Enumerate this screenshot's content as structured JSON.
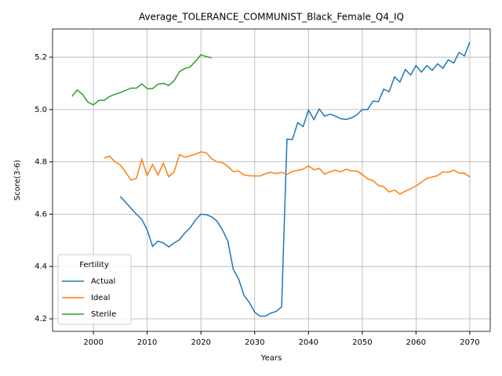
{
  "chart_data": {
    "type": "line",
    "title": "Average_TOLERANCE_COMMUNIST_Black_Female_Q4_IQ",
    "xlabel": "Years",
    "ylabel": "Score(3-6)",
    "x": [
      1996,
      1997,
      1998,
      1999,
      2000,
      2001,
      2002,
      2003,
      2004,
      2005,
      2006,
      2007,
      2008,
      2009,
      2010,
      2011,
      2012,
      2013,
      2014,
      2015,
      2016,
      2017,
      2018,
      2019,
      2020,
      2021,
      2022,
      2023,
      2024,
      2025,
      2026,
      2027,
      2028,
      2029,
      2030,
      2031,
      2032,
      2033,
      2034,
      2035,
      2036,
      2037,
      2038,
      2039,
      2040,
      2041,
      2042,
      2043,
      2044,
      2045,
      2046,
      2047,
      2048,
      2049,
      2050,
      2051,
      2052,
      2053,
      2054,
      2055,
      2056,
      2057,
      2058,
      2059,
      2060,
      2061,
      2062,
      2063,
      2064,
      2065,
      2066,
      2067,
      2068,
      2069,
      2070
    ],
    "series": [
      {
        "name": "Actual",
        "color": "#1f77b4",
        "values": [
          null,
          null,
          null,
          null,
          null,
          null,
          null,
          null,
          null,
          4.668,
          4.645,
          4.622,
          4.6,
          4.58,
          4.54,
          4.477,
          4.497,
          4.49,
          4.475,
          4.49,
          4.502,
          4.528,
          4.548,
          4.578,
          4.6,
          4.598,
          4.59,
          4.573,
          4.54,
          4.497,
          4.39,
          4.352,
          4.29,
          4.262,
          4.225,
          4.21,
          4.21,
          4.222,
          4.228,
          4.245,
          4.887,
          4.885,
          4.95,
          4.935,
          4.998,
          4.962,
          5.002,
          4.975,
          4.982,
          4.975,
          4.965,
          4.962,
          4.968,
          4.98,
          5.0,
          5.0,
          5.032,
          5.03,
          5.078,
          5.068,
          5.125,
          5.105,
          5.153,
          5.132,
          5.168,
          5.143,
          5.168,
          5.15,
          5.175,
          5.158,
          5.19,
          5.178,
          5.218,
          5.205,
          5.258
        ]
      },
      {
        "name": "Ideal",
        "color": "#ff7f0e",
        "values": [
          null,
          null,
          null,
          null,
          null,
          null,
          4.815,
          4.822,
          4.8,
          4.788,
          4.76,
          4.73,
          4.737,
          4.81,
          4.748,
          4.79,
          4.75,
          4.795,
          4.743,
          4.762,
          4.828,
          4.818,
          4.823,
          4.83,
          4.838,
          4.835,
          4.812,
          4.8,
          4.797,
          4.782,
          4.763,
          4.765,
          4.75,
          4.747,
          4.746,
          4.746,
          4.755,
          4.76,
          4.755,
          4.76,
          4.752,
          4.763,
          4.768,
          4.772,
          4.785,
          4.77,
          4.775,
          4.753,
          4.762,
          4.768,
          4.762,
          4.772,
          4.765,
          4.765,
          4.752,
          4.735,
          4.728,
          4.71,
          4.705,
          4.685,
          4.692,
          4.677,
          4.688,
          4.697,
          4.708,
          4.722,
          4.737,
          4.742,
          4.747,
          4.762,
          4.76,
          4.768,
          4.757,
          4.757,
          4.742
        ]
      },
      {
        "name": "Sterile",
        "color": "#2ca02c",
        "values": [
          5.05,
          5.075,
          5.057,
          5.028,
          5.018,
          5.035,
          5.035,
          5.05,
          5.058,
          5.065,
          5.073,
          5.082,
          5.082,
          5.098,
          5.08,
          5.08,
          5.097,
          5.1,
          5.092,
          5.11,
          5.145,
          5.157,
          5.163,
          5.185,
          5.21,
          5.202,
          5.198,
          null,
          null,
          null,
          null,
          null,
          null,
          null,
          null,
          null,
          null,
          null,
          null,
          null,
          null,
          null,
          null,
          null,
          null,
          null,
          null,
          null,
          null,
          null,
          null,
          null,
          null,
          null,
          null,
          null,
          null,
          null,
          null,
          null,
          null,
          null,
          null,
          null,
          null,
          null,
          null,
          null,
          null,
          null,
          null,
          null,
          null,
          null,
          null
        ]
      }
    ],
    "xlim": [
      1992.4,
      2073.8
    ],
    "xticks": [
      2000,
      2010,
      2020,
      2030,
      2040,
      2050,
      2060,
      2070
    ],
    "ylim": [
      4.152,
      5.308
    ],
    "yticks": [
      4.2,
      4.4,
      4.6,
      4.8,
      {
        "value": 5,
        "label": "5.0"
      },
      5.2
    ],
    "grid": true,
    "legend_title": "Fertility",
    "legend": "lower left"
  }
}
